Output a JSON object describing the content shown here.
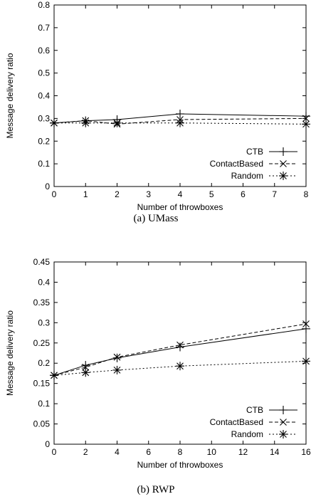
{
  "chart_data": [
    {
      "type": "line",
      "caption": "(a) UMass",
      "xlabel": "Number of throwboxes",
      "ylabel": "Message delivery ratio",
      "xlim": [
        0,
        8
      ],
      "ylim": [
        0,
        0.8
      ],
      "xticks": [
        0,
        1,
        2,
        3,
        4,
        5,
        6,
        7,
        8
      ],
      "yticks": [
        0,
        0.1,
        0.2,
        0.3,
        0.4,
        0.5,
        0.6,
        0.7,
        0.8
      ],
      "ytick_labels": [
        "0",
        "0.1",
        "0.2",
        "0.3",
        "0.4",
        "0.5",
        "0.6",
        "0.7",
        "0.8"
      ],
      "grid": false,
      "legend_position": "bottom-right",
      "series": [
        {
          "name": "CTB",
          "marker": "plus",
          "dash": "solid",
          "x": [
            0,
            1,
            2,
            4,
            8
          ],
          "y": [
            0.28,
            0.29,
            0.295,
            0.32,
            0.31
          ]
        },
        {
          "name": "ContactBased",
          "marker": "x",
          "dash": "dashed",
          "x": [
            0,
            1,
            2,
            4,
            8
          ],
          "y": [
            0.28,
            0.29,
            0.275,
            0.295,
            0.3
          ]
        },
        {
          "name": "Random",
          "marker": "star",
          "dash": "dotted",
          "x": [
            0,
            1,
            2,
            4,
            8
          ],
          "y": [
            0.28,
            0.28,
            0.28,
            0.28,
            0.275
          ]
        }
      ]
    },
    {
      "type": "line",
      "caption": "(b) RWP",
      "xlabel": "Number of throwboxes",
      "ylabel": "Message delivery ratio",
      "xlim": [
        0,
        16
      ],
      "ylim": [
        0,
        0.45
      ],
      "xticks": [
        0,
        2,
        4,
        6,
        8,
        10,
        12,
        14,
        16
      ],
      "yticks": [
        0,
        0.05,
        0.1,
        0.15,
        0.2,
        0.25,
        0.3,
        0.35,
        0.4,
        0.45
      ],
      "ytick_labels": [
        "0",
        "0.05",
        "0.1",
        "0.15",
        "0.2",
        "0.25",
        "0.3",
        "0.35",
        "0.4",
        "0.45"
      ],
      "grid": false,
      "legend_position": "bottom-right",
      "series": [
        {
          "name": "CTB",
          "marker": "plus",
          "dash": "solid",
          "x": [
            0,
            2,
            4,
            8,
            16
          ],
          "y": [
            0.17,
            0.195,
            0.213,
            0.24,
            0.285
          ]
        },
        {
          "name": "ContactBased",
          "marker": "x",
          "dash": "dashed",
          "x": [
            0,
            2,
            4,
            8,
            16
          ],
          "y": [
            0.17,
            0.19,
            0.215,
            0.245,
            0.297
          ]
        },
        {
          "name": "Random",
          "marker": "star",
          "dash": "dotted",
          "x": [
            0,
            2,
            4,
            8,
            16
          ],
          "y": [
            0.17,
            0.177,
            0.183,
            0.193,
            0.205
          ]
        }
      ]
    }
  ]
}
